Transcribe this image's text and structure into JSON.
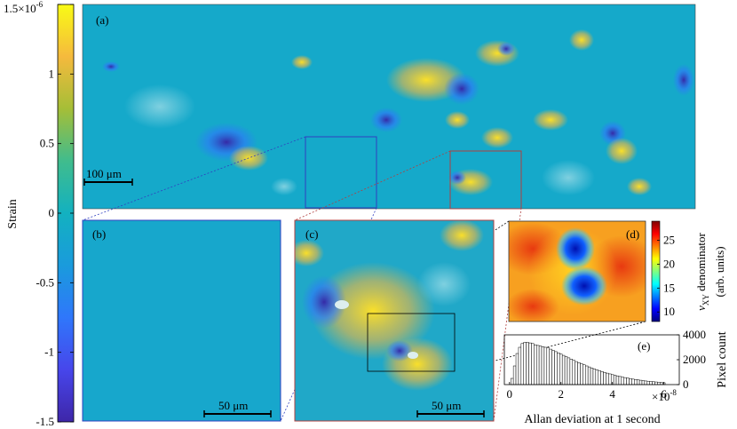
{
  "colorbar": {
    "label": "Strain",
    "ticks": [
      {
        "value": 1.5,
        "text": "1.5×10",
        "exp": "-6"
      },
      {
        "value": 1.0,
        "text": "1"
      },
      {
        "value": 0.5,
        "text": "0.5"
      },
      {
        "value": 0.0,
        "text": "0"
      },
      {
        "value": -0.5,
        "text": "-0.5"
      },
      {
        "value": -1.0,
        "text": "-1"
      },
      {
        "value": -1.5,
        "text": "-1.5"
      }
    ],
    "range": [
      -1.5,
      1.5
    ],
    "colormap": "parula"
  },
  "panels": {
    "a": {
      "label": "(a)",
      "scalebar": "100 μm"
    },
    "b": {
      "label": "(b)",
      "scalebar": "50 μm"
    },
    "c": {
      "label": "(c)",
      "scalebar": "50 μm"
    },
    "d": {
      "label": "(d)",
      "colorbar_label": "ν",
      "colorbar_label_sub": "XY",
      "colorbar_label_rest": " denominator",
      "colorbar_units": "(arb. units)",
      "ticks": [
        {
          "value": 25,
          "text": "25"
        },
        {
          "value": 20,
          "text": "20"
        },
        {
          "value": 15,
          "text": "15"
        },
        {
          "value": 10,
          "text": "10"
        }
      ],
      "range": [
        8,
        29
      ],
      "colormap": "jet"
    },
    "e": {
      "label": "(e)"
    }
  },
  "chart_data": {
    "type": "bar",
    "xlabel": "Allan deviation at 1 second",
    "ylabel": "Pixel count",
    "x_exponent": "×10",
    "x_exponent_power": "-8",
    "xlim": [
      -0.2,
      6.6
    ],
    "ylim": [
      0,
      4000
    ],
    "xticks": [
      0,
      2,
      4,
      6
    ],
    "yticks": [
      0,
      2000,
      4000
    ],
    "bin_centers": [
      0.1,
      0.2,
      0.3,
      0.4,
      0.5,
      0.6,
      0.7,
      0.8,
      0.9,
      1.0,
      1.1,
      1.2,
      1.3,
      1.4,
      1.5,
      1.6,
      1.7,
      1.8,
      1.9,
      2.0,
      2.1,
      2.2,
      2.3,
      2.4,
      2.5,
      2.6,
      2.7,
      2.8,
      2.9,
      3.0,
      3.1,
      3.2,
      3.3,
      3.4,
      3.5,
      3.6,
      3.7,
      3.8,
      3.9,
      4.0,
      4.1,
      4.2,
      4.3,
      4.4,
      4.5,
      4.6,
      4.7,
      4.8,
      4.9,
      5.0,
      5.1,
      5.2,
      5.3,
      5.4,
      5.5,
      5.6,
      5.7,
      5.8,
      5.9,
      6.0
    ],
    "values": [
      500,
      1500,
      2500,
      3000,
      3300,
      3400,
      3400,
      3350,
      3300,
      3200,
      3150,
      3100,
      3050,
      3000,
      2950,
      2850,
      2750,
      2650,
      2550,
      2450,
      2350,
      2250,
      2150,
      2050,
      1950,
      1850,
      1760,
      1670,
      1590,
      1500,
      1420,
      1340,
      1260,
      1190,
      1120,
      1050,
      980,
      920,
      860,
      800,
      750,
      700,
      650,
      600,
      560,
      520,
      480,
      440,
      410,
      380,
      350,
      320,
      290,
      270,
      250,
      230,
      210,
      190,
      170,
      150
    ]
  }
}
